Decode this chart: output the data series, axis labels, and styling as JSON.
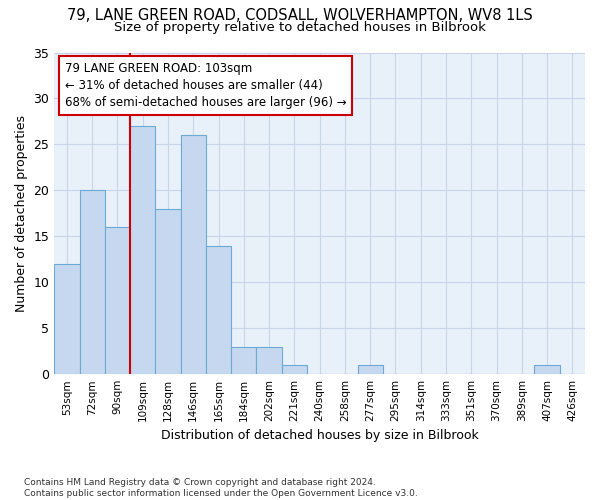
{
  "title_line1": "79, LANE GREEN ROAD, CODSALL, WOLVERHAMPTON, WV8 1LS",
  "title_line2": "Size of property relative to detached houses in Bilbrook",
  "xlabel": "Distribution of detached houses by size in Bilbrook",
  "ylabel": "Number of detached properties",
  "footnote": "Contains HM Land Registry data © Crown copyright and database right 2024.\nContains public sector information licensed under the Open Government Licence v3.0.",
  "bar_labels": [
    "53sqm",
    "72sqm",
    "90sqm",
    "109sqm",
    "128sqm",
    "146sqm",
    "165sqm",
    "184sqm",
    "202sqm",
    "221sqm",
    "240sqm",
    "258sqm",
    "277sqm",
    "295sqm",
    "314sqm",
    "333sqm",
    "351sqm",
    "370sqm",
    "389sqm",
    "407sqm",
    "426sqm"
  ],
  "bar_values": [
    12,
    20,
    16,
    27,
    18,
    26,
    14,
    3,
    3,
    1,
    0,
    0,
    1,
    0,
    0,
    0,
    0,
    0,
    0,
    1,
    0
  ],
  "bar_color": "#c5d8f0",
  "bar_edge_color": "#6aaad4",
  "annotation_box_text": "79 LANE GREEN ROAD: 103sqm\n← 31% of detached houses are smaller (44)\n68% of semi-detached houses are larger (96) →",
  "vline_x": 2.5,
  "vline_color": "#cc0000",
  "ylim": [
    0,
    35
  ],
  "yticks": [
    0,
    5,
    10,
    15,
    20,
    25,
    30,
    35
  ],
  "background_color": "#e8f0fa",
  "grid_color": "#c8d4e8",
  "title_fontsize": 10.5,
  "subtitle_fontsize": 9.5,
  "xlabel_fontsize": 9,
  "ylabel_fontsize": 9,
  "bar_width": 1.0
}
